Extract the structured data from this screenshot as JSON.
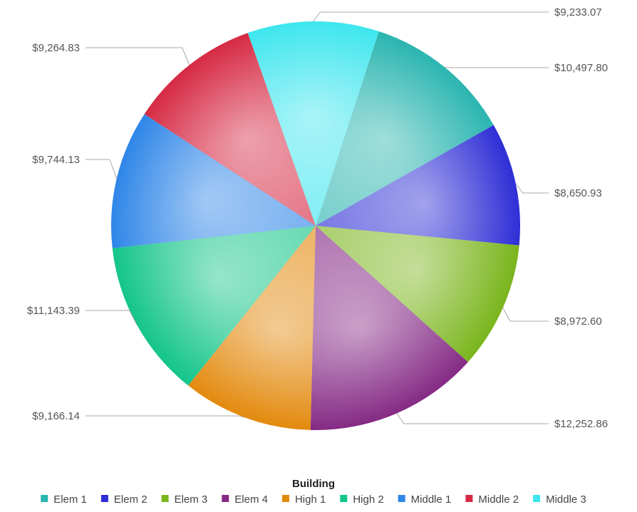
{
  "chart_data": {
    "type": "pie",
    "categories": [
      "Elem 1",
      "Elem 2",
      "Elem 3",
      "Elem 4",
      "High 1",
      "High 2",
      "Middle 1",
      "Middle 2",
      "Middle 3"
    ],
    "values": [
      10497.8,
      8650.93,
      8972.6,
      12252.86,
      9166.14,
      11143.39,
      9744.13,
      9264.83,
      9233.07
    ],
    "value_labels": [
      "$10,497.80",
      "$8,650.93",
      "$8,972.60",
      "$12,252.86",
      "$9,166.14",
      "$11,143.39",
      "$9,744.13",
      "$9,264.83",
      "$9,233.07"
    ],
    "colors": [
      "#2bb5b0",
      "#2e2ed6",
      "#7ab51c",
      "#852a85",
      "#e38a0e",
      "#14c58a",
      "#2f86e8",
      "#d62a44",
      "#3ee6ee"
    ],
    "legend": {
      "title": "Building",
      "position": "bottom",
      "entries": [
        "Elem 1",
        "Elem 2",
        "Elem 3",
        "Elem 4",
        "High 1",
        "High 2",
        "Middle 1",
        "Middle 2",
        "Middle 3"
      ]
    },
    "start_angle_deg": 18,
    "direction": "clockwise"
  }
}
